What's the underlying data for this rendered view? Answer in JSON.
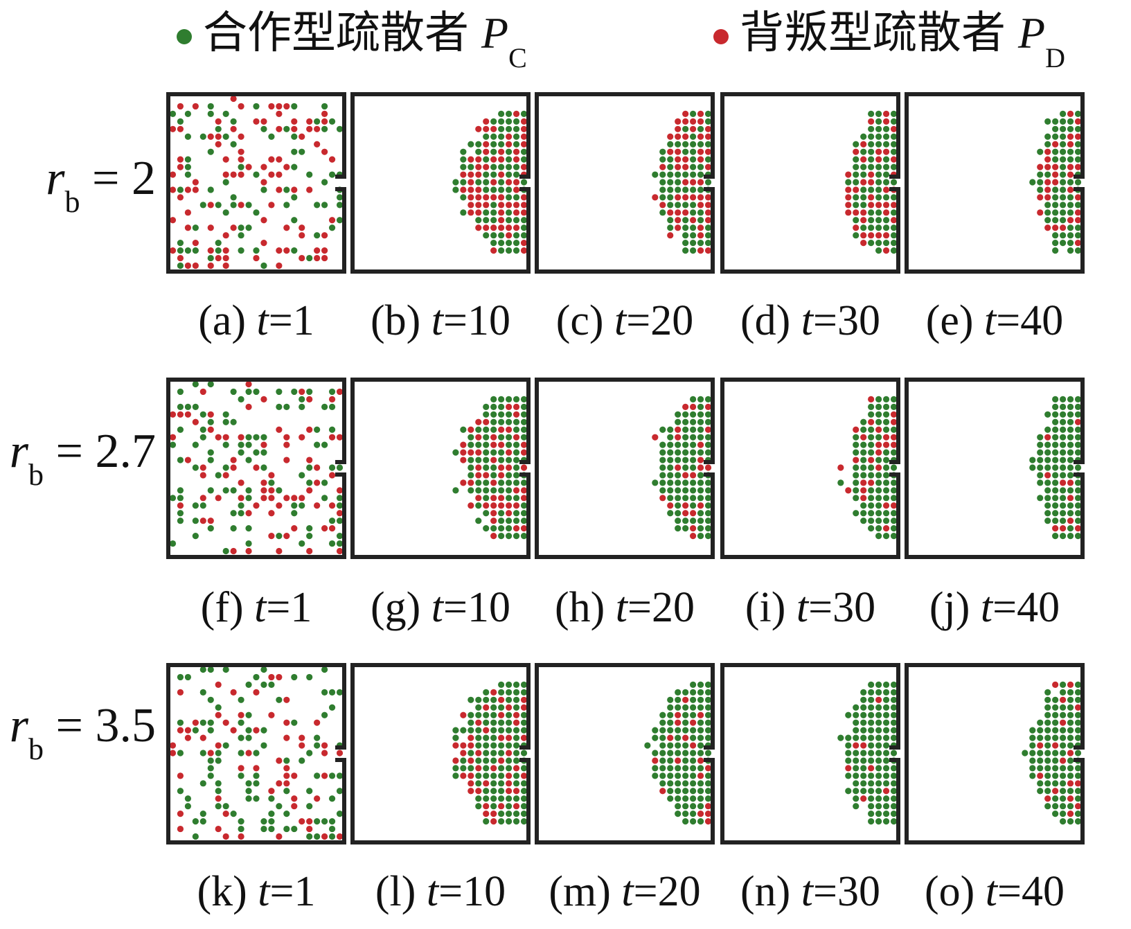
{
  "colors": {
    "cooperator": "#2f7d2f",
    "defector": "#c8292e",
    "wall": "#222222"
  },
  "legend": {
    "cooperator": {
      "label": "合作型疏散者",
      "symbol": "P",
      "subscript": "C"
    },
    "defector": {
      "label": "背叛型疏散者",
      "symbol": "P",
      "subscript": "D"
    }
  },
  "rows": [
    {
      "label": {
        "symbol": "r",
        "subscript": "b",
        "equals": "= 2"
      },
      "panels": [
        {
          "id": "(a)",
          "t_label": "t",
          "t_value": "=1"
        },
        {
          "id": "(b)",
          "t_label": "t",
          "t_value": "=10"
        },
        {
          "id": "(c)",
          "t_label": "t",
          "t_value": "=20"
        },
        {
          "id": "(d)",
          "t_label": "t",
          "t_value": "=30"
        },
        {
          "id": "(e)",
          "t_label": "t",
          "t_value": "=40"
        }
      ]
    },
    {
      "label": {
        "symbol": "r",
        "subscript": "b",
        "equals": "= 2.7"
      },
      "panels": [
        {
          "id": "(f)",
          "t_label": "t",
          "t_value": "=1"
        },
        {
          "id": "(g)",
          "t_label": "t",
          "t_value": "=10"
        },
        {
          "id": "(h)",
          "t_label": "t",
          "t_value": "=20"
        },
        {
          "id": "(i)",
          "t_label": "t",
          "t_value": "=30"
        },
        {
          "id": "(j)",
          "t_label": "t",
          "t_value": "=40"
        }
      ]
    },
    {
      "label": {
        "symbol": "r",
        "subscript": "b",
        "equals": "= 3.5"
      },
      "panels": [
        {
          "id": "(k)",
          "t_label": "t",
          "t_value": "=1"
        },
        {
          "id": "(l)",
          "t_label": "t",
          "t_value": "=10"
        },
        {
          "id": "(m)",
          "t_label": "t",
          "t_value": "=20"
        },
        {
          "id": "(n)",
          "t_label": "t",
          "t_value": "=30"
        },
        {
          "id": "(o)",
          "t_label": "t",
          "t_value": "=40"
        }
      ]
    }
  ]
}
